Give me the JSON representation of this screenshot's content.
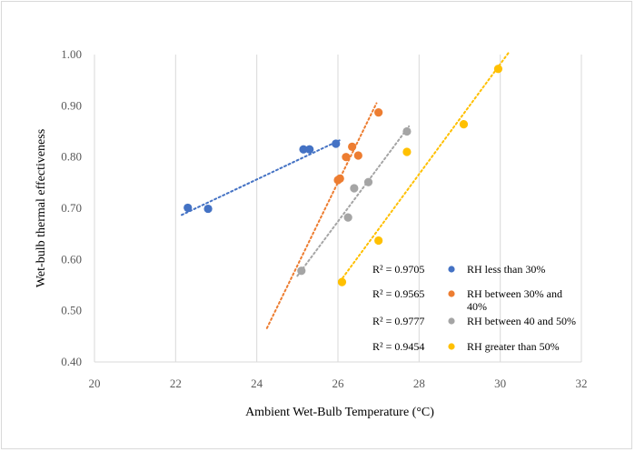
{
  "chart_data": {
    "type": "scatter",
    "xlabel": "Ambient Wet-Bulb Temperature (°C)",
    "ylabel": "Wet-bulb thermal effectiveness",
    "xlim": [
      20,
      32
    ],
    "ylim": [
      0.4,
      1.0
    ],
    "x_ticks": [
      "20",
      "22",
      "24",
      "26",
      "28",
      "30",
      "32"
    ],
    "y_ticks": [
      "0.40",
      "0.50",
      "0.60",
      "0.70",
      "0.80",
      "0.90",
      "1.00"
    ],
    "grid": "vertical",
    "legend_position": "bottom-right inside",
    "series": [
      {
        "name": "RH less than 30%",
        "color": "#4472c4",
        "r2": "R² = 0.9705",
        "points": [
          [
            22.3,
            0.701
          ],
          [
            22.8,
            0.699
          ],
          [
            25.15,
            0.815
          ],
          [
            25.3,
            0.815
          ],
          [
            25.95,
            0.826
          ]
        ],
        "trend": [
          [
            22.15,
            0.687
          ],
          [
            26.05,
            0.833
          ]
        ]
      },
      {
        "name": "RH between 30% and 40%",
        "color": "#ed7d31",
        "r2": "R² = 0.9565",
        "points": [
          [
            26.0,
            0.755
          ],
          [
            26.05,
            0.758
          ],
          [
            26.2,
            0.8
          ],
          [
            26.35,
            0.82
          ],
          [
            26.5,
            0.803
          ],
          [
            27.0,
            0.887
          ]
        ],
        "trend": [
          [
            24.25,
            0.466
          ],
          [
            26.95,
            0.905
          ]
        ]
      },
      {
        "name": "RH between 40 and 50%",
        "color": "#a5a5a5",
        "r2": "R² = 0.9777",
        "points": [
          [
            25.1,
            0.578
          ],
          [
            26.25,
            0.682
          ],
          [
            26.4,
            0.739
          ],
          [
            26.75,
            0.751
          ],
          [
            27.7,
            0.85
          ]
        ],
        "trend": [
          [
            25.0,
            0.568
          ],
          [
            27.75,
            0.86
          ]
        ]
      },
      {
        "name": "RH greater than 50%",
        "color": "#ffc000",
        "r2": "R² = 0.9454",
        "points": [
          [
            26.1,
            0.556
          ],
          [
            27.0,
            0.637
          ],
          [
            27.7,
            0.81
          ],
          [
            29.1,
            0.864
          ],
          [
            29.95,
            0.972
          ]
        ],
        "trend": [
          [
            26.05,
            0.557
          ],
          [
            30.2,
            1.003
          ]
        ]
      }
    ]
  }
}
